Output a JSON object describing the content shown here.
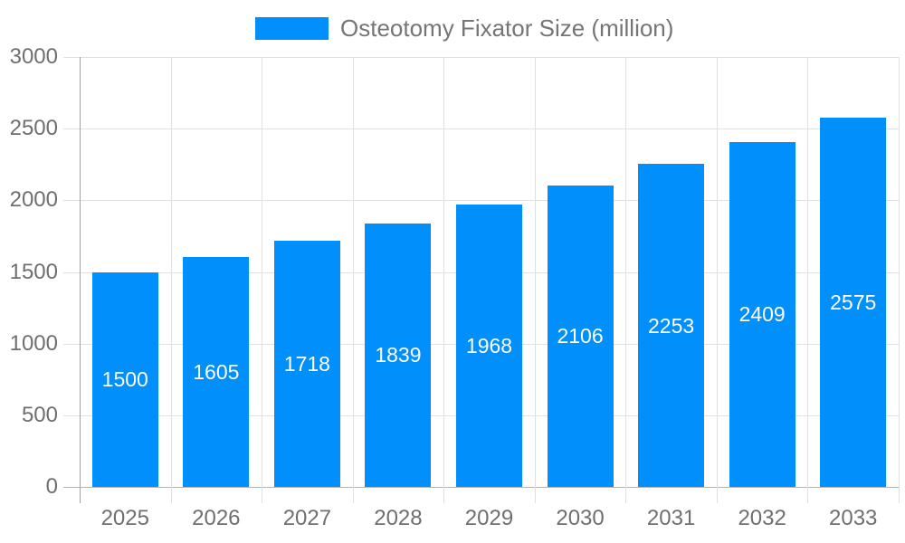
{
  "legend": {
    "label": "Osteotomy Fixator Size (million)"
  },
  "chart_data": {
    "type": "bar",
    "title": "Osteotomy Fixator Size (million)",
    "series_name": "Osteotomy Fixator Size (million)",
    "categories": [
      "2025",
      "2026",
      "2027",
      "2028",
      "2029",
      "2030",
      "2031",
      "2032",
      "2033"
    ],
    "values": [
      1500,
      1605,
      1718,
      1839,
      1968,
      2106,
      2253,
      2409,
      2575
    ],
    "xlabel": "",
    "ylabel": "",
    "ylim": [
      0,
      3000
    ],
    "yticks": [
      0,
      500,
      1000,
      1500,
      2000,
      2500,
      3000
    ],
    "grid": true,
    "legend_position": "top-center",
    "data_labels": "inside-center-white"
  },
  "colors": {
    "bar": "#008FFB",
    "grid_line": "#e0e0e0",
    "y_axis_line": "#a2a2a2",
    "x_baseline": "#b3b3b3",
    "axis_label": "#6f6f6f",
    "legend_label": "#757575",
    "data_label": "#ffffff",
    "background": "#ffffff"
  }
}
